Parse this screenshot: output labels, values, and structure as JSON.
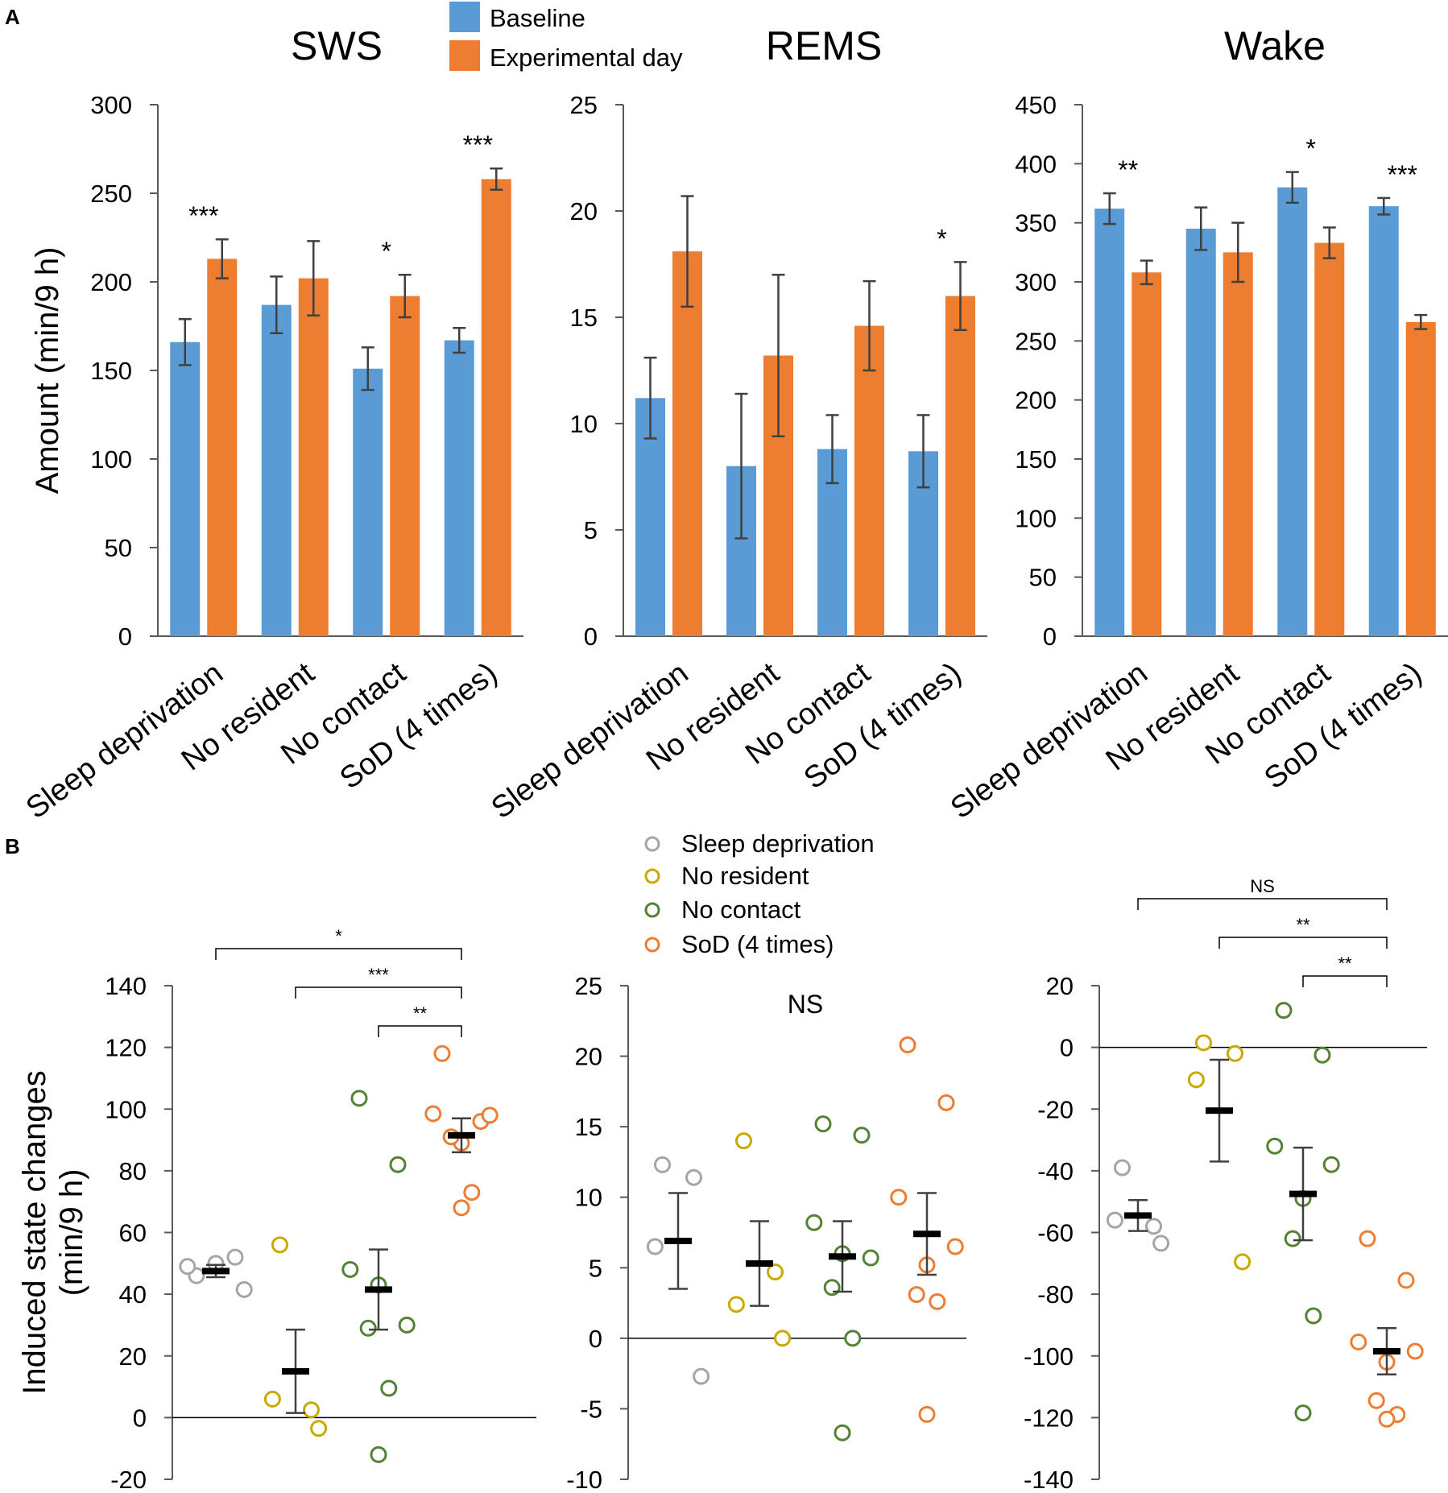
{
  "panel_labels": {
    "a": "A",
    "b": "B"
  },
  "legend_a": [
    {
      "label": "Baseline",
      "color": "#5b9bd5"
    },
    {
      "label": "Experimental day",
      "color": "#ed7d31"
    }
  ],
  "legend_b": [
    {
      "label": "Sleep deprivation",
      "color": "#a5a5a5"
    },
    {
      "label": "No resident",
      "color": "#c9a900"
    },
    {
      "label": "No contact",
      "color": "#548235"
    },
    {
      "label": "SoD (4 times)",
      "color": "#ed7d31"
    }
  ],
  "chart_data": [
    {
      "type": "bar",
      "panel": "A",
      "title": "SWS",
      "ylabel": "Amount (min/9 h)",
      "ylim": [
        0,
        300
      ],
      "yticks": [
        "0",
        "50",
        "100",
        "150",
        "200",
        "250",
        "300"
      ],
      "categories": [
        "Sleep deprivation",
        "No resident",
        "No contact",
        "SoD (4 times)"
      ],
      "series": [
        {
          "name": "Baseline",
          "values": [
            166,
            187,
            151,
            167
          ],
          "errors": [
            13,
            16,
            12,
            7
          ]
        },
        {
          "name": "Experimental day",
          "values": [
            213,
            202,
            192,
            258
          ],
          "errors": [
            11,
            21,
            12,
            6
          ]
        }
      ],
      "annotations": [
        "***",
        "",
        "*",
        "***"
      ]
    },
    {
      "type": "bar",
      "panel": "A",
      "title": "REMS",
      "ylabel": "",
      "ylim": [
        0,
        25
      ],
      "yticks": [
        "0",
        "5",
        "10",
        "15",
        "20",
        "25"
      ],
      "categories": [
        "Sleep deprivation",
        "No resident",
        "No contact",
        "SoD (4 times)"
      ],
      "series": [
        {
          "name": "Baseline",
          "values": [
            11.2,
            8.0,
            8.8,
            8.7
          ],
          "errors": [
            1.9,
            3.4,
            1.6,
            1.7
          ]
        },
        {
          "name": "Experimental day",
          "values": [
            18.1,
            13.2,
            14.6,
            16.0
          ],
          "errors": [
            2.6,
            3.8,
            2.1,
            1.6
          ]
        }
      ],
      "annotations": [
        "",
        "",
        "",
        "*"
      ]
    },
    {
      "type": "bar",
      "panel": "A",
      "title": "Wake",
      "ylabel": "",
      "ylim": [
        0,
        450
      ],
      "yticks": [
        "0",
        "50",
        "100",
        "150",
        "200",
        "250",
        "300",
        "350",
        "400",
        "450"
      ],
      "categories": [
        "Sleep deprivation",
        "No resident",
        "No contact",
        "SoD (4 times)"
      ],
      "series": [
        {
          "name": "Baseline",
          "values": [
            362,
            345,
            380,
            364
          ],
          "errors": [
            13,
            18,
            13,
            7
          ]
        },
        {
          "name": "Experimental day",
          "values": [
            308,
            325,
            333,
            266
          ],
          "errors": [
            10,
            25,
            13,
            6
          ]
        }
      ],
      "annotations": [
        "**",
        "",
        "*",
        "***"
      ]
    },
    {
      "type": "scatter",
      "panel": "B",
      "title": "",
      "ylabel": "Induced state changes\n(min/9 h)",
      "ylim": [
        -20,
        140
      ],
      "yticks": [
        "-20",
        "0",
        "20",
        "40",
        "60",
        "80",
        "100",
        "120",
        "140"
      ],
      "groups": [
        {
          "name": "Sleep deprivation",
          "points": [
            46,
            52,
            49,
            41.5,
            50
          ],
          "mean": 47.5,
          "sem": 2
        },
        {
          "name": "No resident",
          "points": [
            56,
            2.5,
            6,
            -3.5
          ],
          "mean": 15,
          "sem": 13.5
        },
        {
          "name": "No contact",
          "points": [
            103.5,
            82,
            48,
            30,
            43,
            29,
            9.5,
            -12
          ],
          "mean": 41.5,
          "sem": 13
        },
        {
          "name": "SoD (4 times)",
          "points": [
            118,
            96,
            98.5,
            98,
            89,
            91,
            73,
            68
          ],
          "mean": 91.5,
          "sem": 5.5
        }
      ],
      "comparisons": [
        {
          "from": 0,
          "to": 3,
          "label": "*"
        },
        {
          "from": 1,
          "to": 3,
          "label": "***"
        },
        {
          "from": 2,
          "to": 3,
          "label": "**"
        }
      ],
      "note": ""
    },
    {
      "type": "scatter",
      "panel": "B",
      "title": "",
      "ylabel": "",
      "ylim": [
        -10,
        25
      ],
      "yticks": [
        "-10",
        "-5",
        "0",
        "5",
        "10",
        "15",
        "20",
        "25"
      ],
      "groups": [
        {
          "name": "Sleep deprivation",
          "points": [
            12.3,
            11.4,
            6.5,
            -2.7
          ],
          "mean": 6.9,
          "sem": 3.4
        },
        {
          "name": "No resident",
          "points": [
            14,
            4.7,
            2.4,
            0
          ],
          "mean": 5.3,
          "sem": 3.0
        },
        {
          "name": "No contact",
          "points": [
            15.2,
            14.4,
            8.2,
            5.7,
            6.0,
            3.6,
            0,
            -6.7
          ],
          "mean": 5.8,
          "sem": 2.5
        },
        {
          "name": "SoD (4 times)",
          "points": [
            20.8,
            16.7,
            10.0,
            6.5,
            5.2,
            3.1,
            2.6,
            -5.4
          ],
          "mean": 7.4,
          "sem": 2.9
        }
      ],
      "comparisons": [],
      "note": "NS"
    },
    {
      "type": "scatter",
      "panel": "B",
      "title": "",
      "ylabel": "",
      "ylim": [
        -140,
        20
      ],
      "yticks": [
        "-140",
        "-120",
        "-100",
        "-80",
        "-60",
        "-40",
        "-20",
        "0",
        "20"
      ],
      "groups": [
        {
          "name": "Sleep deprivation",
          "points": [
            -39,
            -58,
            -56,
            -63.5
          ],
          "mean": -54.5,
          "sem": 5
        },
        {
          "name": "No resident",
          "points": [
            1.5,
            -2,
            -10.5,
            -69.5
          ],
          "mean": -20.5,
          "sem": 16.5
        },
        {
          "name": "No contact",
          "points": [
            12,
            -2.5,
            -32,
            -38,
            -49,
            -62,
            -87,
            -118.5
          ],
          "mean": -47.5,
          "sem": 15
        },
        {
          "name": "SoD (4 times)",
          "points": [
            -62,
            -75.5,
            -95.5,
            -98.5,
            -102,
            -114.5,
            -119,
            -120.5
          ],
          "mean": -98.5,
          "sem": 7.5
        }
      ],
      "comparisons": [
        {
          "from": 0,
          "to": 3,
          "label": "NS"
        },
        {
          "from": 1,
          "to": 3,
          "label": "**"
        },
        {
          "from": 2,
          "to": 3,
          "label": "**"
        }
      ],
      "note": ""
    }
  ]
}
